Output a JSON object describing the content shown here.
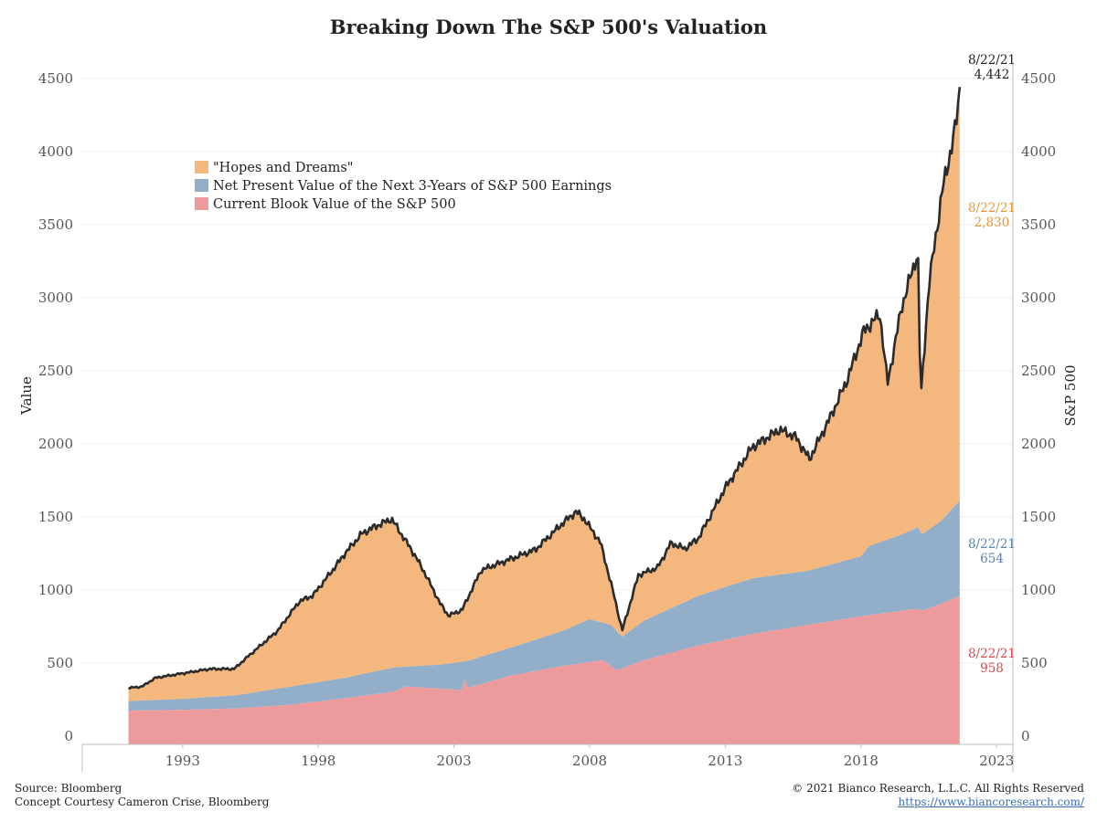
{
  "chart_data": {
    "type": "area",
    "title": "Breaking Down The S&P 500's Valuation",
    "ylabel_left": "Value",
    "ylabel_right": "S&P 500",
    "x_ticks": [
      "1993",
      "1998",
      "2003",
      "2008",
      "2013",
      "2018",
      "2023"
    ],
    "y_ticks": [
      0,
      500,
      1000,
      1500,
      2000,
      2500,
      3000,
      3500,
      4000,
      4500
    ],
    "ylim": [
      0,
      4500
    ],
    "xlim": [
      1989.3,
      2023.6
    ],
    "legend": [
      {
        "label": "\"Hopes and Dreams\"",
        "color": "#f4b87e"
      },
      {
        "label": "Net Present Value of the Next 3-Years of S&P 500 Earnings",
        "color": "#93aec8"
      },
      {
        "label": "Current Blook Value of the S&P 500",
        "color": "#ec9a9c"
      }
    ],
    "colors": {
      "hopes": "#f4b87e",
      "npv": "#93aec8",
      "book": "#ec9a9c",
      "spx": "#2b2b2b"
    },
    "series": [
      {
        "name": "S&P 500",
        "x": [
          1991.0,
          1991.5,
          1992.0,
          1993.0,
          1994.0,
          1994.9,
          1995.5,
          1996.5,
          1997.3,
          1997.8,
          1998.6,
          1999.0,
          1999.6,
          2000.0,
          2000.7,
          2001.5,
          2001.9,
          2002.5,
          2002.8,
          2003.3,
          2004.0,
          2005.0,
          2006.0,
          2007.0,
          2007.5,
          2007.8,
          2008.4,
          2008.9,
          2009.2,
          2009.8,
          2010.5,
          2011.0,
          2011.5,
          2012.0,
          2013.0,
          2014.0,
          2015.0,
          2015.6,
          2016.1,
          2016.9,
          2017.5,
          2018.1,
          2018.7,
          2018.98,
          2019.5,
          2020.1,
          2020.2,
          2020.5,
          2021.0,
          2021.5,
          2021.64
        ],
        "values": [
          330,
          340,
          400,
          430,
          460,
          460,
          560,
          720,
          920,
          960,
          1150,
          1250,
          1380,
          1420,
          1480,
          1250,
          1120,
          900,
          820,
          860,
          1130,
          1200,
          1270,
          1450,
          1530,
          1480,
          1320,
          960,
          720,
          1100,
          1150,
          1320,
          1280,
          1350,
          1700,
          1980,
          2100,
          2050,
          1900,
          2200,
          2450,
          2780,
          2900,
          2420,
          2950,
          3330,
          2300,
          3100,
          3750,
          4200,
          4442
        ]
      },
      {
        "name": "Net Present Value of the Next 3-Years of S&P 500 Earnings (stack top)",
        "x": [
          1991.0,
          1993.0,
          1995.0,
          1997.0,
          1999.0,
          2000.8,
          2002.5,
          2003.35,
          2003.6,
          2005.0,
          2007.0,
          2008.0,
          2008.8,
          2009.2,
          2010.0,
          2012.0,
          2014.0,
          2016.0,
          2018.0,
          2018.3,
          2019.5,
          2020.1,
          2020.25,
          2021.0,
          2021.64
        ],
        "values": [
          240,
          255,
          280,
          340,
          400,
          470,
          490,
          510,
          520,
          600,
          720,
          800,
          760,
          680,
          790,
          960,
          1080,
          1130,
          1230,
          1300,
          1380,
          1430,
          1380,
          1480,
          1612
        ]
      },
      {
        "name": "Current Blook Value of the S&P 500",
        "x": [
          1991.0,
          1993.0,
          1995.0,
          1997.0,
          1999.0,
          2000.8,
          2001.2,
          2003.3,
          2003.4,
          2003.5,
          2005.0,
          2007.0,
          2008.5,
          2009.0,
          2010.0,
          2012.0,
          2014.0,
          2016.0,
          2018.0,
          2020.0,
          2020.3,
          2021.0,
          2021.64
        ],
        "values": [
          175,
          180,
          190,
          215,
          260,
          305,
          340,
          315,
          405,
          330,
          410,
          480,
          520,
          450,
          520,
          620,
          700,
          760,
          820,
          870,
          860,
          910,
          958
        ]
      }
    ],
    "annotations": [
      {
        "date": "8/22/21",
        "value": "4,442",
        "series": "spx"
      },
      {
        "date": "8/22/21",
        "value": "2,830",
        "series": "hopes"
      },
      {
        "date": "8/22/21",
        "value": "654",
        "series": "npv"
      },
      {
        "date": "8/22/21",
        "value": "958",
        "series": "book"
      }
    ]
  },
  "footer": {
    "source": "Source: Bloomberg",
    "concept": "Concept Courtesy Cameron Crise, Bloomberg",
    "copyright": "© 2021 Bianco Research, L.L.C. All Rights Reserved",
    "url": "https://www.biancoresearch.com/"
  }
}
